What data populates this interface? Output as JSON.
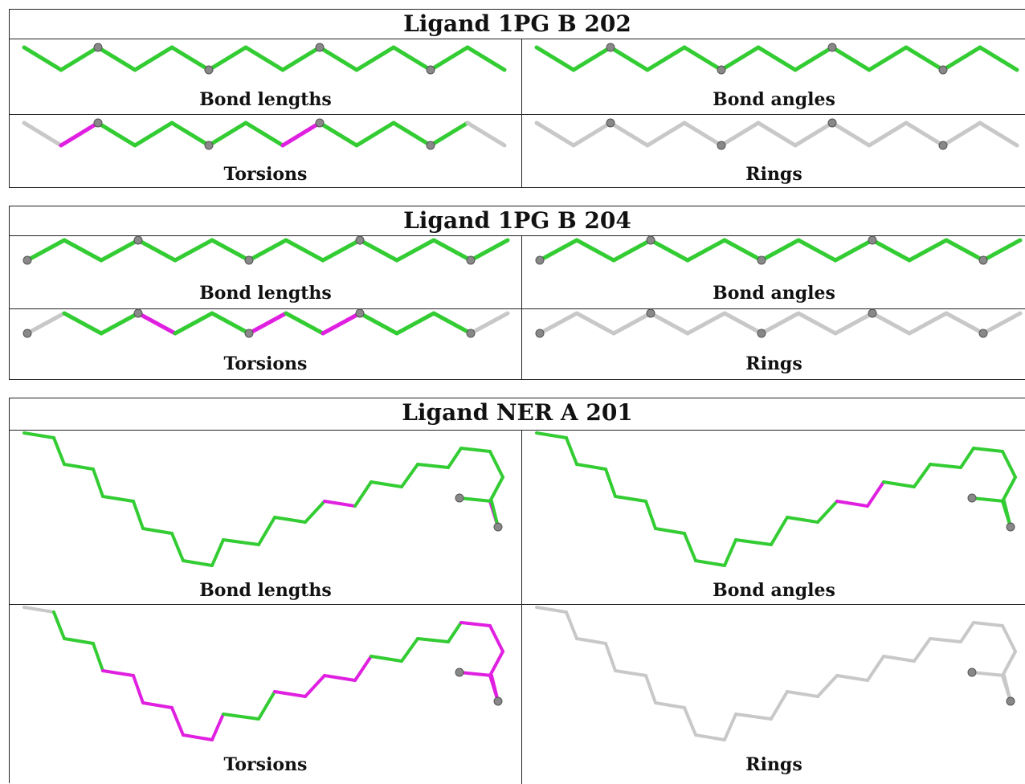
{
  "colors": {
    "ok": "#33cc33",
    "outlier": "#e020e0",
    "neutral": "#c8c8c8",
    "atom": "#888888",
    "atom_edge": "#555555"
  },
  "panels": [
    {
      "title": "Ligand 1PG B 202",
      "cells": [
        {
          "caption": "Bond lengths",
          "bond_colors": [
            "g",
            "g",
            "g",
            "g",
            "g",
            "g",
            "g",
            "g",
            "g",
            "g",
            "g",
            "g",
            "g"
          ]
        },
        {
          "caption": "Bond angles",
          "bond_colors": [
            "g",
            "g",
            "g",
            "g",
            "g",
            "g",
            "g",
            "g",
            "g",
            "g",
            "g",
            "g",
            "g"
          ]
        },
        {
          "caption": "Torsions",
          "bond_colors": [
            "n",
            "m",
            "g",
            "g",
            "g",
            "g",
            "g",
            "m",
            "g",
            "g",
            "g",
            "g",
            "n"
          ]
        },
        {
          "caption": "Rings",
          "bond_colors": [
            "n",
            "n",
            "n",
            "n",
            "n",
            "n",
            "n",
            "n",
            "n",
            "n",
            "n",
            "n",
            "n"
          ]
        }
      ]
    },
    {
      "title": "Ligand 1PG B 204",
      "cells": [
        {
          "caption": "Bond lengths",
          "bond_colors": [
            "g",
            "g",
            "g",
            "g",
            "g",
            "g",
            "g",
            "g",
            "g",
            "g",
            "g",
            "g",
            "g"
          ]
        },
        {
          "caption": "Bond angles",
          "bond_colors": [
            "g",
            "g",
            "g",
            "g",
            "g",
            "g",
            "g",
            "g",
            "g",
            "g",
            "g",
            "g",
            "g"
          ]
        },
        {
          "caption": "Torsions",
          "bond_colors": [
            "n",
            "g",
            "g",
            "m",
            "g",
            "g",
            "m",
            "g",
            "m",
            "g",
            "g",
            "g",
            "n"
          ]
        },
        {
          "caption": "Rings",
          "bond_colors": [
            "n",
            "n",
            "n",
            "n",
            "n",
            "n",
            "n",
            "n",
            "n",
            "n",
            "n",
            "n",
            "n"
          ]
        }
      ]
    },
    {
      "title": "Ligand NER A 201",
      "cells": [
        {
          "caption": "Bond lengths",
          "bond_colors": [
            "g",
            "g",
            "g",
            "g",
            "g",
            "g",
            "g",
            "g",
            "g",
            "g",
            "g",
            "g",
            "g",
            "g",
            "m",
            "g",
            "g",
            "g",
            "g",
            "g",
            "g",
            "g",
            "g",
            "m",
            "g",
            "g",
            "g",
            "g",
            "g",
            "g",
            "g",
            "g",
            "g",
            "g",
            "g",
            "g",
            "g",
            "g",
            "g",
            "g",
            "g",
            "g"
          ]
        },
        {
          "caption": "Bond angles",
          "bond_colors": [
            "g",
            "g",
            "g",
            "g",
            "g",
            "g",
            "g",
            "g",
            "g",
            "g",
            "g",
            "g",
            "g",
            "g",
            "m",
            "m",
            "g",
            "g",
            "g",
            "g",
            "g",
            "g",
            "g",
            "g",
            "g",
            "g",
            "g",
            "g",
            "g",
            "m",
            "m",
            "m",
            "m",
            "m",
            "g",
            "g",
            "g",
            "g",
            "g",
            "g",
            "g",
            "m"
          ]
        },
        {
          "caption": "Torsions",
          "bond_colors": [
            "n",
            "g",
            "g",
            "g",
            "m",
            "m",
            "m",
            "m",
            "m",
            "m",
            "g",
            "g",
            "m",
            "m",
            "m",
            "m",
            "g",
            "g",
            "g",
            "g",
            "m",
            "m",
            "m",
            "m",
            "m",
            "m",
            "g",
            "g",
            "m",
            "m",
            "m",
            "m",
            "m",
            "m",
            "g",
            "g",
            "n",
            "n",
            "n",
            "n",
            "n",
            "n"
          ]
        },
        {
          "caption": "Rings",
          "bond_colors": [
            "n",
            "n",
            "n",
            "n",
            "n",
            "n",
            "n",
            "n",
            "n",
            "n",
            "n",
            "n",
            "n",
            "n",
            "n",
            "n",
            "n",
            "n",
            "n",
            "n",
            "n",
            "n",
            "n",
            "n",
            "n",
            "n",
            "n",
            "n",
            "n",
            "n",
            "n",
            "n",
            "n",
            "n",
            "n",
            "n",
            "n",
            "n",
            "n",
            "n",
            "n",
            "n"
          ]
        }
      ]
    }
  ]
}
